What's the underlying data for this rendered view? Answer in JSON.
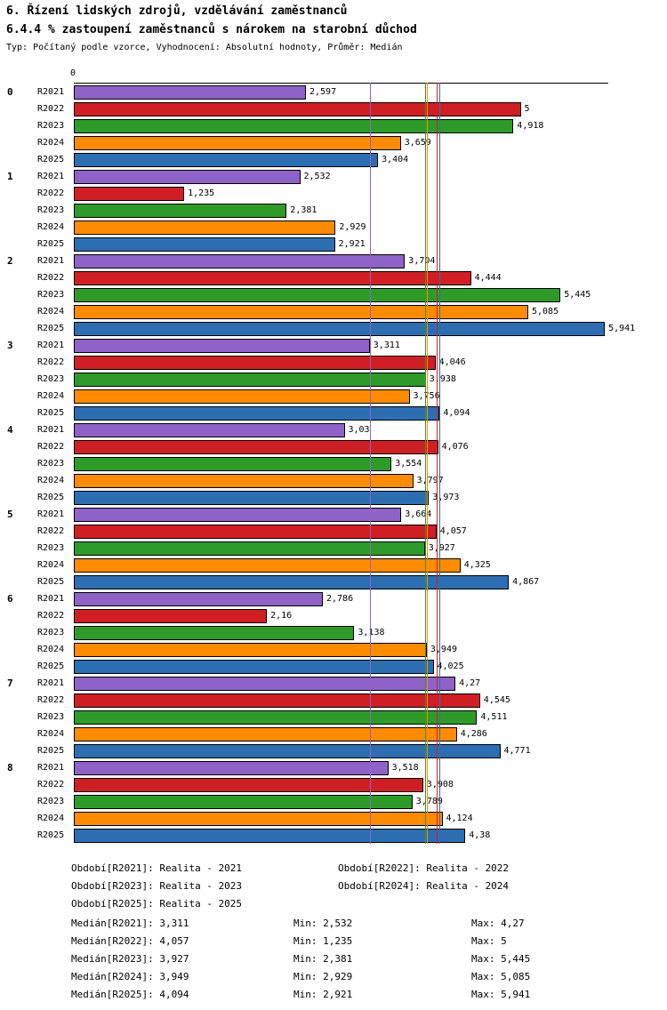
{
  "header": {
    "title": "6. Řízení lidských zdrojů, vzdělávání zaměstnanců",
    "subtitle": "6.4.4 % zastoupení zaměstnanců s nárokem na starobní důchod",
    "meta": "Typ: Počítaný podle vzorce, Vyhodnocení: Absolutní hodnoty, Průměr: Medián"
  },
  "chart_data": {
    "type": "bar",
    "orientation": "horizontal",
    "title": "6.4.4 % zastoupení zaměstnanců s nárokem na starobní důchod",
    "axis_zero_label": "0",
    "xlim": [
      0,
      5.941
    ],
    "grid": false,
    "categories": [
      "0",
      "1",
      "2",
      "3",
      "4",
      "5",
      "6",
      "7",
      "8"
    ],
    "series": [
      {
        "name": "R2021",
        "color": "#8f62c7",
        "values": [
          2.597,
          2.532,
          3.704,
          3.311,
          3.03,
          3.664,
          2.786,
          4.27,
          3.518
        ],
        "value_labels": [
          "2,597",
          "2,532",
          "3,704",
          "3,311",
          "3,03",
          "3,664",
          "2,786",
          "4,27",
          "3,518"
        ],
        "median": 3.311
      },
      {
        "name": "R2022",
        "color": "#d01f24",
        "values": [
          5,
          1.235,
          4.444,
          4.046,
          4.076,
          4.057,
          2.16,
          4.545,
          3.908
        ],
        "value_labels": [
          "5",
          "1,235",
          "4,444",
          "4,046",
          "4,076",
          "4,057",
          "2,16",
          "4,545",
          "3,908"
        ],
        "median": 4.057
      },
      {
        "name": "R2023",
        "color": "#2e9b29",
        "values": [
          4.918,
          2.381,
          5.445,
          3.938,
          3.554,
          3.927,
          3.138,
          4.511,
          3.789
        ],
        "value_labels": [
          "4,918",
          "2,381",
          "5,445",
          "3,938",
          "3,554",
          "3,927",
          "3,138",
          "4,511",
          "3,789"
        ],
        "median": 3.927
      },
      {
        "name": "R2024",
        "color": "#ff8b00",
        "values": [
          3.659,
          2.929,
          5.085,
          3.756,
          3.797,
          4.325,
          3.949,
          4.286,
          4.124
        ],
        "value_labels": [
          "3,659",
          "2,929",
          "5,085",
          "3,756",
          "3,797",
          "4,325",
          "3,949",
          "4,286",
          "4,124"
        ],
        "median": 3.949
      },
      {
        "name": "R2025",
        "color": "#2d6eb2",
        "values": [
          3.404,
          2.921,
          5.941,
          4.094,
          3.973,
          4.867,
          4.025,
          4.771,
          4.38
        ],
        "value_labels": [
          "3,404",
          "2,921",
          "5,941",
          "4,094",
          "3,973",
          "4,867",
          "4,025",
          "4,771",
          "4,38"
        ],
        "median": 4.094
      }
    ],
    "legend_position": "bottom"
  },
  "legend_rows": [
    [
      "Období[R2021]: Realita - 2021",
      "Období[R2022]: Realita - 2022"
    ],
    [
      "Období[R2023]: Realita - 2023",
      "Období[R2024]: Realita - 2024"
    ],
    [
      "Období[R2025]: Realita - 2025"
    ]
  ],
  "stats_rows": [
    [
      "Medián[R2021]: 3,311",
      "Min: 2,532",
      "Max: 4,27"
    ],
    [
      "Medián[R2022]: 4,057",
      "Min: 1,235",
      "Max: 5"
    ],
    [
      "Medián[R2023]: 3,927",
      "Min: 2,381",
      "Max: 5,445"
    ],
    [
      "Medián[R2024]: 3,949",
      "Min: 2,929",
      "Max: 5,085"
    ],
    [
      "Medián[R2025]: 4,094",
      "Min: 2,921",
      "Max: 5,941"
    ]
  ]
}
